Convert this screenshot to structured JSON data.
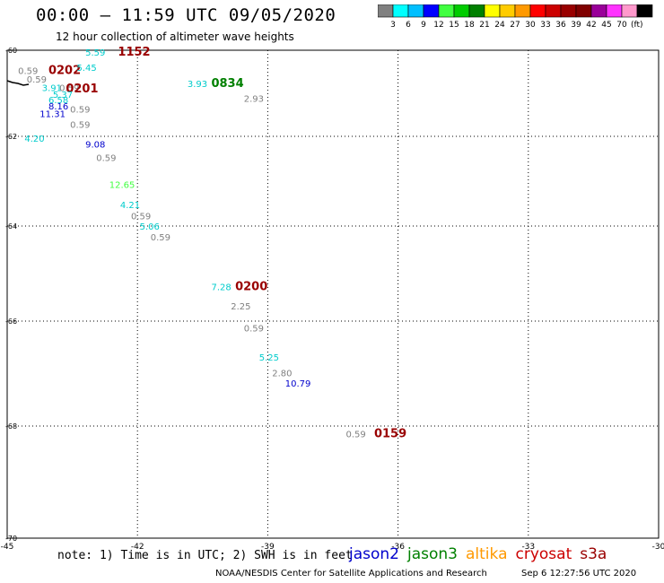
{
  "header": {
    "title": "00:00 – 11:59 UTC 09/05/2020",
    "subtitle": "12 hour collection of altimeter wave heights"
  },
  "colorbar": {
    "colors": [
      "#808080",
      "#00ffff",
      "#00bfff",
      "#0000ff",
      "#40ff40",
      "#00cc00",
      "#008000",
      "#ffff00",
      "#ffcc00",
      "#ff9900",
      "#ff0000",
      "#cc0000",
      "#990000",
      "#800000",
      "#990099",
      "#ff33ff",
      "#ff99cc",
      "#000000"
    ],
    "ticks": [
      "3",
      "6",
      "9",
      "12",
      "15",
      "18",
      "21",
      "24",
      "27",
      "30",
      "33",
      "36",
      "39",
      "42",
      "45",
      "70"
    ],
    "unit": "(ft)"
  },
  "map": {
    "lat_ticks": [
      "-60",
      "-62",
      "-64",
      "-66",
      "-68",
      "-70"
    ],
    "lon_ticks": [
      "-45",
      "-42",
      "-39",
      "-36",
      "-33",
      "-30"
    ],
    "lat_values": [
      -60,
      -62,
      -64,
      -66,
      -68,
      -70
    ],
    "lon_values": [
      -45,
      -42,
      -39,
      -36,
      -33,
      -30
    ],
    "gridlines": true,
    "observations": [
      {
        "text": "5.59",
        "color": "#00cccc",
        "lon": -43.2,
        "lat": -60.12
      },
      {
        "text": "1152",
        "color": "#990000",
        "lon": -42.45,
        "lat": -60.12,
        "time": true
      },
      {
        "text": "0.59",
        "color": "#808080",
        "lon": -44.75,
        "lat": -60.55
      },
      {
        "text": "0202",
        "color": "#990000",
        "lon": -44.05,
        "lat": -60.55,
        "time": true
      },
      {
        "text": "5.45",
        "color": "#00cccc",
        "lon": -43.4,
        "lat": -60.48
      },
      {
        "text": "0.59",
        "color": "#808080",
        "lon": -44.55,
        "lat": -60.75
      },
      {
        "text": "3.93",
        "color": "#00cccc",
        "lon": -40.85,
        "lat": -60.85
      },
      {
        "text": "0834",
        "color": "#008000",
        "lon": -40.3,
        "lat": -60.85,
        "time": true
      },
      {
        "text": "3.91",
        "color": "#00cccc",
        "lon": -44.2,
        "lat": -60.95
      },
      {
        "text": "0.59",
        "color": "#808080",
        "lon": -43.8,
        "lat": -60.95
      },
      {
        "text": "0201",
        "color": "#990000",
        "lon": -43.65,
        "lat": -60.98,
        "time": true
      },
      {
        "text": "5.37",
        "color": "#00cccc",
        "lon": -43.95,
        "lat": -61.1
      },
      {
        "text": "6.58",
        "color": "#00cccc",
        "lon": -44.05,
        "lat": -61.23
      },
      {
        "text": "2.93",
        "color": "#808080",
        "lon": -39.55,
        "lat": -61.2
      },
      {
        "text": "8.16",
        "color": "#0000cc",
        "lon": -44.05,
        "lat": -61.37
      },
      {
        "text": "0.59",
        "color": "#808080",
        "lon": -43.55,
        "lat": -61.45
      },
      {
        "text": "11.31",
        "color": "#0000cc",
        "lon": -44.25,
        "lat": -61.55
      },
      {
        "text": "0.59",
        "color": "#808080",
        "lon": -43.55,
        "lat": -61.8
      },
      {
        "text": "4.20",
        "color": "#00cccc",
        "lon": -44.6,
        "lat": -62.12
      },
      {
        "text": "9.08",
        "color": "#0000cc",
        "lon": -43.2,
        "lat": -62.25
      },
      {
        "text": "0.59",
        "color": "#808080",
        "lon": -42.95,
        "lat": -62.55
      },
      {
        "text": "12.65",
        "color": "#40ff40",
        "lon": -42.65,
        "lat": -63.15
      },
      {
        "text": "4.21",
        "color": "#00cccc",
        "lon": -42.4,
        "lat": -63.6
      },
      {
        "text": "0.59",
        "color": "#808080",
        "lon": -42.15,
        "lat": -63.85
      },
      {
        "text": "5.06",
        "color": "#00cccc",
        "lon": -41.95,
        "lat": -64.08
      },
      {
        "text": "0.59",
        "color": "#808080",
        "lon": -41.7,
        "lat": -64.3
      },
      {
        "text": "7.28",
        "color": "#00cccc",
        "lon": -40.3,
        "lat": -65.35
      },
      {
        "text": "0200",
        "color": "#990000",
        "lon": -39.75,
        "lat": -65.35,
        "time": true
      },
      {
        "text": "2.25",
        "color": "#808080",
        "lon": -39.85,
        "lat": -65.75
      },
      {
        "text": "0.59",
        "color": "#808080",
        "lon": -39.55,
        "lat": -66.2
      },
      {
        "text": "5.25",
        "color": "#00cccc",
        "lon": -39.2,
        "lat": -66.75
      },
      {
        "text": "2.80",
        "color": "#808080",
        "lon": -38.9,
        "lat": -67.05
      },
      {
        "text": "10.79",
        "color": "#0000cc",
        "lon": -38.6,
        "lat": -67.25
      },
      {
        "text": "0.59",
        "color": "#808080",
        "lon": -37.2,
        "lat": -68.2
      },
      {
        "text": "0159",
        "color": "#990000",
        "lon": -36.55,
        "lat": -68.2,
        "time": true
      }
    ]
  },
  "footer": {
    "note": "note: 1) Time is in UTC; 2) SWH is in feet",
    "legend": [
      {
        "label": "jason2",
        "color": "#0000cc"
      },
      {
        "label": "jason3",
        "color": "#008000"
      },
      {
        "label": "altika",
        "color": "#ff9900"
      },
      {
        "label": "cryosat",
        "color": "#cc0000"
      },
      {
        "label": "s3a",
        "color": "#990000"
      }
    ],
    "credit": "NOAA/NESDIS Center for Satellite Applications and Research",
    "timestamp": "Sep  6 12:27:56 UTC 2020"
  }
}
